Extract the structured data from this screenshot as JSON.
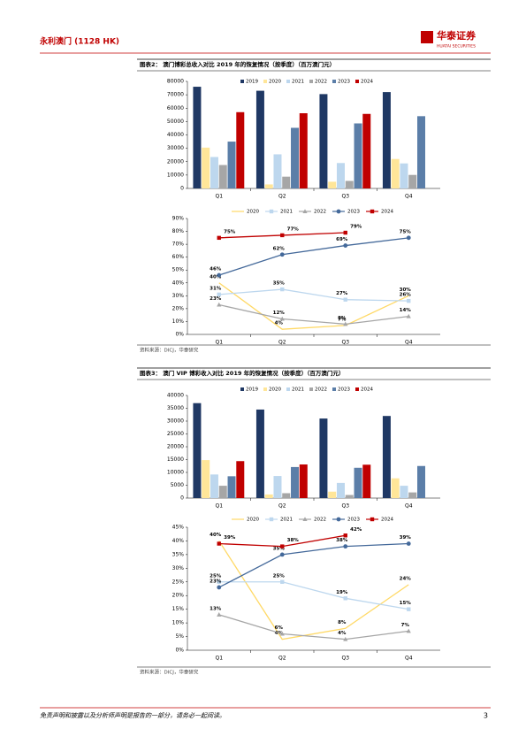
{
  "header": {
    "company": "永利澳门 (1128 HK)",
    "logo": "华泰证券",
    "logo_sub": "HUATAI SECURITIES"
  },
  "figures": [
    {
      "title": "图表2：  澳门博彩总收入对比 2019 年的恢复情况（按季度）（百万澳门元）",
      "source": "资料来源：DICJ，华泰研究"
    },
    {
      "title": "图表3：  澳门 VIP 博彩收入对比 2019 年的恢复情况（按季度）（百万澳门元）",
      "source": "资料来源：DICJ，华泰研究"
    }
  ],
  "chart_data": [
    {
      "type": "bar",
      "categories": [
        "Q1",
        "Q2",
        "Q3",
        "Q4"
      ],
      "ylim": [
        0,
        80000
      ],
      "yticks": [
        0,
        10000,
        20000,
        30000,
        40000,
        50000,
        60000,
        70000,
        80000
      ],
      "series": [
        {
          "name": "2019",
          "color": "#1f3864",
          "values": [
            76000,
            73000,
            70500,
            72000
          ]
        },
        {
          "name": "2020",
          "color": "#ffe699",
          "values": [
            30500,
            3000,
            5000,
            22000
          ]
        },
        {
          "name": "2021",
          "color": "#bdd7ee",
          "values": [
            23500,
            25500,
            19000,
            18700
          ]
        },
        {
          "name": "2022",
          "color": "#a6a6a6",
          "values": [
            17500,
            8800,
            5600,
            10100
          ]
        },
        {
          "name": "2023",
          "color": "#5b7ea8",
          "values": [
            35000,
            45300,
            48600,
            54000
          ]
        },
        {
          "name": "2024",
          "color": "#c00000",
          "values": [
            57000,
            56200,
            55700,
            null
          ]
        }
      ]
    },
    {
      "type": "line",
      "categories": [
        "Q1",
        "Q2",
        "Q3",
        "Q4"
      ],
      "ylim": [
        0,
        90
      ],
      "yticks": [
        {
          "value": 0,
          "label": "0%"
        },
        {
          "value": 10,
          "label": "10%"
        },
        {
          "value": 20,
          "label": "20%"
        },
        {
          "value": 30,
          "label": "30%"
        },
        {
          "value": 40,
          "label": "40%"
        },
        {
          "value": 50,
          "label": "50%"
        },
        {
          "value": 60,
          "label": "60%"
        },
        {
          "value": 70,
          "label": "70%"
        },
        {
          "value": 80,
          "label": "80%"
        },
        {
          "value": 90,
          "label": "90%"
        }
      ],
      "series": [
        {
          "name": "2020",
          "color": "#ffd966",
          "values": [
            40,
            4,
            7,
            30
          ],
          "value_labels": [
            "40%",
            "4%",
            "7%",
            "30%"
          ]
        },
        {
          "name": "2021",
          "color": "#bdd7ee",
          "marker": "square",
          "values": [
            31,
            35,
            27,
            26
          ],
          "value_labels": [
            "31%",
            "35%",
            "27%",
            "26%"
          ]
        },
        {
          "name": "2022",
          "color": "#a6a6a6",
          "marker": "triangle",
          "values": [
            23,
            12,
            8,
            14
          ],
          "value_labels": [
            "23%",
            "12%",
            "8%",
            "14%"
          ]
        },
        {
          "name": "2023",
          "color": "#44699a",
          "marker": "circle",
          "values": [
            46,
            62,
            69,
            75
          ],
          "value_labels": [
            "46%",
            "62%",
            "69%",
            "75%"
          ]
        },
        {
          "name": "2024",
          "color": "#c00000",
          "marker": "square",
          "values": [
            75,
            77,
            79,
            null
          ],
          "value_labels": [
            "75%",
            "77%",
            "79%",
            null
          ]
        }
      ]
    },
    {
      "type": "bar",
      "categories": [
        "Q1",
        "Q2",
        "Q3",
        "Q4"
      ],
      "ylim": [
        0,
        40000
      ],
      "yticks": [
        0,
        5000,
        10000,
        15000,
        20000,
        25000,
        30000,
        35000,
        40000
      ],
      "series": [
        {
          "name": "2019",
          "color": "#1f3864",
          "values": [
            37000,
            34500,
            31000,
            32000
          ]
        },
        {
          "name": "2020",
          "color": "#ffe699",
          "values": [
            14800,
            1400,
            2500,
            7700
          ]
        },
        {
          "name": "2021",
          "color": "#bdd7ee",
          "values": [
            9200,
            8600,
            5900,
            4800
          ]
        },
        {
          "name": "2022",
          "color": "#a6a6a6",
          "values": [
            4800,
            1900,
            1200,
            2200
          ]
        },
        {
          "name": "2023",
          "color": "#5b7ea8",
          "values": [
            8500,
            12100,
            11800,
            12500
          ]
        },
        {
          "name": "2024",
          "color": "#c00000",
          "values": [
            14400,
            13100,
            13000,
            null
          ]
        }
      ]
    },
    {
      "type": "line",
      "categories": [
        "Q1",
        "Q2",
        "Q3",
        "Q4"
      ],
      "ylim": [
        0,
        45
      ],
      "yticks": [
        {
          "value": 0,
          "label": "0%"
        },
        {
          "value": 5,
          "label": "5%"
        },
        {
          "value": 10,
          "label": "10%"
        },
        {
          "value": 15,
          "label": "15%"
        },
        {
          "value": 20,
          "label": "20%"
        },
        {
          "value": 25,
          "label": "25%"
        },
        {
          "value": 30,
          "label": "30%"
        },
        {
          "value": 35,
          "label": "35%"
        },
        {
          "value": 40,
          "label": "40%"
        },
        {
          "value": 45,
          "label": "45%"
        }
      ],
      "series": [
        {
          "name": "2020",
          "color": "#ffd966",
          "values": [
            40,
            4,
            8,
            24
          ],
          "value_labels": [
            "40%",
            "4%",
            "8%",
            "24%"
          ]
        },
        {
          "name": "2021",
          "color": "#bdd7ee",
          "marker": "square",
          "values": [
            25,
            25,
            19,
            15
          ],
          "value_labels": [
            "25%",
            "25%",
            "19%",
            "15%"
          ]
        },
        {
          "name": "2022",
          "color": "#a6a6a6",
          "marker": "triangle",
          "values": [
            13,
            6,
            4,
            7
          ],
          "value_labels": [
            "13%",
            "6%",
            "4%",
            "7%"
          ]
        },
        {
          "name": "2023",
          "color": "#44699a",
          "marker": "circle",
          "values": [
            23,
            35,
            38,
            39
          ],
          "value_labels": [
            "23%",
            "35%",
            "38%",
            "39%"
          ]
        },
        {
          "name": "2024",
          "color": "#c00000",
          "marker": "square",
          "values": [
            39,
            38,
            42,
            null
          ],
          "value_labels": [
            "39%",
            "38%",
            "42%",
            null
          ]
        }
      ]
    }
  ],
  "footer": {
    "disclaimer": "免责声明和披露以及分析师声明是报告的一部分，请务必一起阅读。",
    "page": "3"
  }
}
